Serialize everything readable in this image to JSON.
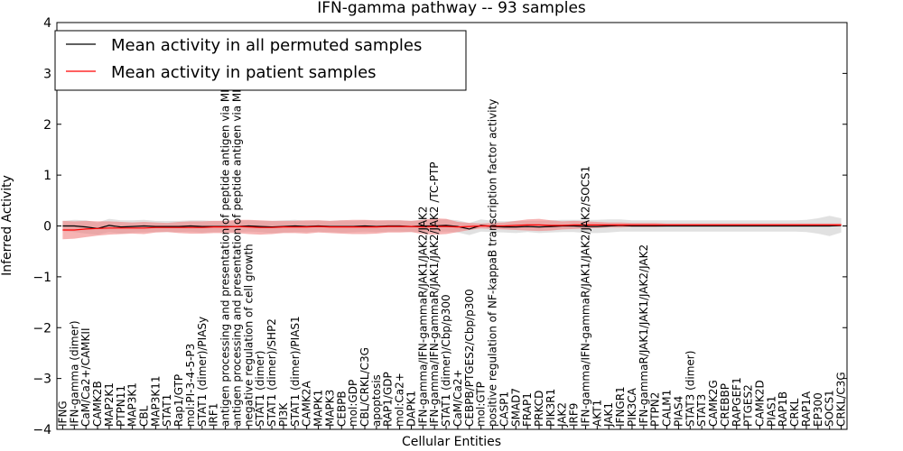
{
  "chart_data": {
    "type": "line",
    "title": "IFN-gamma pathway -- 93 samples",
    "xlabel": "Cellular Entities",
    "ylabel": "Inferred Activity",
    "ylim": [
      -4,
      4
    ],
    "yticks": [
      -4,
      -3,
      -2,
      -1,
      0,
      1,
      2,
      3,
      4
    ],
    "ytick_labels": [
      "−4",
      "−3",
      "−2",
      "−1",
      "0",
      "1",
      "2",
      "3",
      "4"
    ],
    "legend_position": "top-left",
    "categories": [
      "IFNG",
      "IFN-gamma (dimer)",
      "CaM/Ca2+/CAMKII",
      "CAMK2B",
      "MAP2K1",
      "PTPN11",
      "MAP3K1",
      "CBL",
      "MAP3K11",
      "STAT1",
      "Rap1/GTP",
      "mol:PI-3-4-5-P3",
      "STAT1 (dimer)/PIASy",
      "IRF1",
      "antigen processing and presentation of peptide antigen via MHC class I",
      "antigen processing and presentation of peptide antigen via MHC class II",
      "negative regulation of cell growth",
      "STAT1 (dimer)",
      "STAT1 (dimer)/SHP2",
      "PI3K",
      "STAT1 (dimer)/PIAS1",
      "CAMK2A",
      "MAPK1",
      "MAPK3",
      "CEBPB",
      "mol:GDP",
      "CBL/CRKL/C3G",
      "apoptosis",
      "RAP1/GDP",
      "mol:Ca2+",
      "DAPK1",
      "IFN-gamma/IFN-gammaR/JAK1/JAK2/JAK2",
      "IFN-gamma/IFN-gammaR/JAK1/JAK2/JAK2  /TC-PTP",
      "STAT1 (dimer)/Cbp/p300",
      "CaM/Ca2+",
      "CEBPB/PTGES2/Cbp/p300",
      "mol:GTP",
      "positive regulation of NF-kappaB transcription factor activity",
      "CASP1",
      "SMAD7",
      "FRAP1",
      "PRKCD",
      "PIK3R1",
      "JAK2",
      "IRF9",
      "IFN-gamma/IFN-gammaR/JAK1/JAK2/JAK2/SOCS1",
      "AKT1",
      "JAK1",
      "IFNGR1",
      "PIK3CA",
      "IFN-gammaR/JAK1/JAK1/JAK2/JAK2",
      "PTPN2",
      "CALM1",
      "PIAS4",
      "STAT3 (dimer)",
      "STAT3",
      "CAMK2G",
      "CREBBP",
      "RAPGEF1",
      "PTGES2",
      "CAMK2D",
      "PIAS1",
      "RAP1B",
      "CRKL",
      "RAP1A",
      "EP300",
      "SOCS1",
      "CRKL/C3G"
    ],
    "series": [
      {
        "name": "Mean activity in all permuted samples",
        "color": "#000000",
        "band_color": "#c8c8c8",
        "values": [
          0.0,
          0.0,
          -0.02,
          -0.05,
          0.01,
          -0.02,
          -0.01,
          0.0,
          -0.01,
          -0.01,
          -0.01,
          0.0,
          -0.01,
          -0.01,
          -0.01,
          -0.01,
          0.0,
          -0.01,
          -0.02,
          -0.01,
          0.0,
          -0.01,
          0.0,
          -0.01,
          -0.01,
          -0.01,
          0.0,
          -0.01,
          0.0,
          0.0,
          -0.01,
          0.0,
          0.0,
          0.01,
          -0.01,
          -0.06,
          0.01,
          -0.01,
          -0.02,
          -0.02,
          -0.01,
          -0.02,
          -0.01,
          0.0,
          0.0,
          -0.01,
          -0.01,
          0.0,
          0.01,
          0.0,
          0.0,
          0.0,
          0.0,
          0.0,
          0.0,
          0.0,
          0.0,
          0.0,
          0.0,
          0.0,
          0.0,
          0.0,
          0.0,
          0.0,
          0.0,
          0.0,
          0.0,
          0.01
        ],
        "band": [
          0.1,
          0.12,
          0.13,
          0.12,
          0.13,
          0.13,
          0.12,
          0.12,
          0.11,
          0.11,
          0.11,
          0.11,
          0.12,
          0.11,
          0.11,
          0.11,
          0.11,
          0.11,
          0.12,
          0.12,
          0.12,
          0.11,
          0.11,
          0.11,
          0.12,
          0.11,
          0.11,
          0.11,
          0.11,
          0.11,
          0.11,
          0.12,
          0.12,
          0.12,
          0.12,
          0.12,
          0.12,
          0.11,
          0.11,
          0.12,
          0.11,
          0.12,
          0.12,
          0.12,
          0.12,
          0.13,
          0.13,
          0.13,
          0.12,
          0.11,
          0.11,
          0.11,
          0.11,
          0.11,
          0.11,
          0.11,
          0.11,
          0.11,
          0.11,
          0.11,
          0.11,
          0.11,
          0.11,
          0.11,
          0.12,
          0.15,
          0.2,
          0.14
        ]
      },
      {
        "name": "Mean activity in patient samples",
        "color": "#ff0000",
        "band_color": "#f08080",
        "values": [
          -0.08,
          -0.08,
          -0.06,
          -0.05,
          -0.04,
          -0.04,
          -0.04,
          -0.04,
          -0.03,
          -0.03,
          -0.03,
          -0.03,
          -0.03,
          -0.02,
          -0.02,
          -0.01,
          -0.02,
          -0.03,
          -0.03,
          -0.02,
          -0.02,
          -0.02,
          -0.01,
          -0.02,
          -0.02,
          -0.02,
          -0.02,
          -0.02,
          -0.01,
          -0.01,
          -0.01,
          -0.02,
          -0.01,
          -0.01,
          -0.02,
          -0.01,
          0.0,
          0.0,
          0.0,
          0.01,
          0.02,
          0.02,
          0.01,
          0.01,
          0.02,
          0.02,
          0.02,
          0.02,
          0.02,
          0.02,
          0.02,
          0.02,
          0.02,
          0.02,
          0.02,
          0.02,
          0.02,
          0.02,
          0.02,
          0.02,
          0.02,
          0.02,
          0.02,
          0.02,
          0.02,
          0.02,
          0.02,
          0.02
        ],
        "band": [
          0.18,
          0.17,
          0.16,
          0.14,
          0.13,
          0.12,
          0.11,
          0.12,
          0.1,
          0.09,
          0.11,
          0.12,
          0.12,
          0.12,
          0.12,
          0.13,
          0.14,
          0.14,
          0.13,
          0.12,
          0.12,
          0.13,
          0.12,
          0.12,
          0.13,
          0.14,
          0.14,
          0.13,
          0.12,
          0.12,
          0.11,
          0.14,
          0.16,
          0.15,
          0.1,
          0.07,
          0.05,
          0.06,
          0.07,
          0.09,
          0.11,
          0.12,
          0.1,
          0.08,
          0.08,
          0.07,
          0.06,
          0.05,
          0.05,
          0.04,
          0.04,
          0.04,
          0.03,
          0.03,
          0.03,
          0.03,
          0.03,
          0.03,
          0.03,
          0.03,
          0.03,
          0.03,
          0.03,
          0.03,
          0.03,
          0.03,
          0.03,
          0.03
        ]
      }
    ]
  }
}
